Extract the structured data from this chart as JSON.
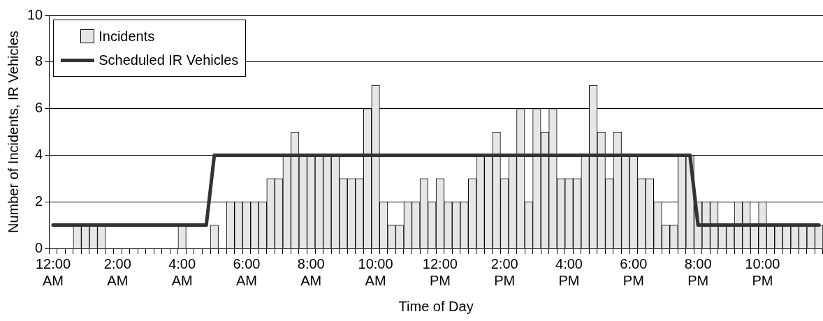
{
  "chart_data": {
    "type": "bar",
    "xlabel": "Time of Day",
    "ylabel": "Number of Incidents, IR Vehicles",
    "categories": [
      "12:00 AM",
      null,
      null,
      null,
      null,
      null,
      null,
      null,
      "2:00 AM",
      null,
      null,
      null,
      null,
      null,
      null,
      null,
      "4:00 AM",
      null,
      null,
      null,
      null,
      null,
      null,
      null,
      "6:00 AM",
      null,
      null,
      null,
      null,
      null,
      null,
      null,
      "8:00 AM",
      null,
      null,
      null,
      null,
      null,
      null,
      null,
      "10:00 AM",
      null,
      null,
      null,
      null,
      null,
      null,
      null,
      "12:00 PM",
      null,
      null,
      null,
      null,
      null,
      null,
      null,
      "2:00 PM",
      null,
      null,
      null,
      null,
      null,
      null,
      null,
      "4:00 PM",
      null,
      null,
      null,
      null,
      null,
      null,
      null,
      "6:00 PM",
      null,
      null,
      null,
      null,
      null,
      null,
      null,
      "8:00 PM",
      null,
      null,
      null,
      null,
      null,
      null,
      null,
      "10:00 PM",
      null,
      null,
      null,
      null,
      null,
      null,
      null
    ],
    "series": [
      {
        "name": "Incidents",
        "color": "#e6e6e6",
        "values": [
          0,
          0,
          0,
          1,
          1,
          1,
          1,
          0,
          0,
          0,
          0,
          0,
          0,
          0,
          0,
          0,
          1,
          0,
          0,
          0,
          1,
          0,
          2,
          2,
          2,
          2,
          2,
          3,
          3,
          4,
          5,
          4,
          4,
          4,
          4,
          4,
          3,
          3,
          3,
          6,
          7,
          2,
          1,
          1,
          2,
          2,
          3,
          2,
          3,
          2,
          2,
          2,
          3,
          4,
          4,
          5,
          3,
          4,
          6,
          2,
          6,
          5,
          6,
          3,
          3,
          3,
          4,
          7,
          5,
          3,
          5,
          4,
          4,
          3,
          3,
          2,
          1,
          1,
          4,
          4,
          2,
          2,
          2,
          1,
          1,
          2,
          2,
          1,
          2,
          1,
          1,
          1,
          1,
          1,
          1,
          1
        ]
      },
      {
        "name": "Scheduled IR Vehicles",
        "type": "line",
        "color": "#333333",
        "values": [
          1,
          1,
          1,
          1,
          1,
          1,
          1,
          1,
          1,
          1,
          1,
          1,
          1,
          1,
          1,
          1,
          1,
          1,
          1,
          1,
          4,
          4,
          4,
          4,
          4,
          4,
          4,
          4,
          4,
          4,
          4,
          4,
          4,
          4,
          4,
          4,
          4,
          4,
          4,
          4,
          4,
          4,
          4,
          4,
          4,
          4,
          4,
          4,
          4,
          4,
          4,
          4,
          4,
          4,
          4,
          4,
          4,
          4,
          4,
          4,
          4,
          4,
          4,
          4,
          4,
          4,
          4,
          4,
          4,
          4,
          4,
          4,
          4,
          4,
          4,
          4,
          4,
          4,
          4,
          4,
          1,
          1,
          1,
          1,
          1,
          1,
          1,
          1,
          1,
          1,
          1,
          1,
          1,
          1,
          1,
          1
        ]
      }
    ],
    "ylim": [
      0,
      10
    ],
    "yticks": [
      0,
      2,
      4,
      6,
      8,
      10
    ],
    "grid": "y",
    "legend": "top left",
    "marker": "none",
    "line_style": "solid"
  }
}
